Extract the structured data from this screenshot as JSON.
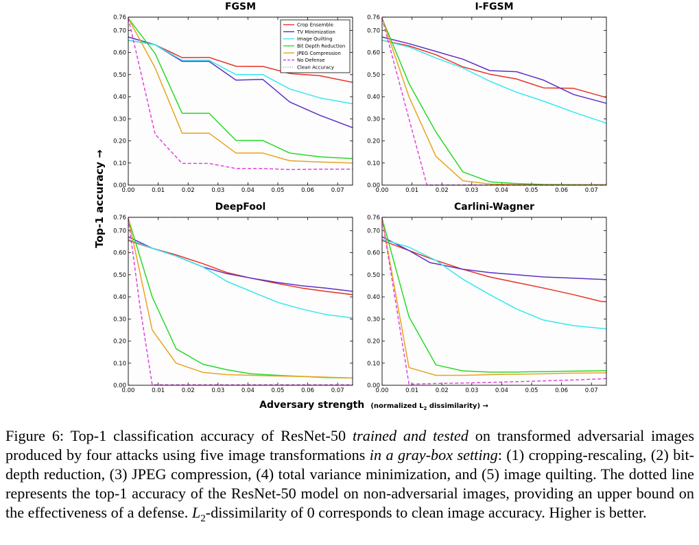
{
  "figure": {
    "ylabel": "Top-1 accuracy →",
    "xlabel_main": "Adversary strength",
    "xlabel_paren_open": "(normalized L",
    "xlabel_sub": "2",
    "xlabel_paren_close": " dissimilarity) →",
    "legend": [
      {
        "label": "Crop Ensemble",
        "color": "#e8301f",
        "dash": false
      },
      {
        "label": "TV Minimization",
        "color": "#5a2fc4",
        "dash": false
      },
      {
        "label": "Image Quilting",
        "color": "#33e8ee",
        "dash": false
      },
      {
        "label": "Bit Depth Reduction",
        "color": "#28d828",
        "dash": false
      },
      {
        "label": "JPEG Compression",
        "color": "#e8a21c",
        "dash": false
      },
      {
        "label": "No Defense",
        "color": "#e23ee0",
        "dash": true
      },
      {
        "label": "Clean Accuracy",
        "color": "#9a9a9a",
        "dash": "dot"
      }
    ]
  },
  "chart_data": [
    {
      "type": "line",
      "title": "FGSM",
      "xlim": [
        0,
        0.075
      ],
      "ylim": [
        0,
        0.76
      ],
      "xticks": [
        "0.00",
        "0.01",
        "0.02",
        "0.03",
        "0.04",
        "0.05",
        "0.06",
        "0.07"
      ],
      "yticks": [
        "0.00",
        "0.10",
        "0.20",
        "0.30",
        "0.40",
        "0.50",
        "0.60",
        "0.70",
        "0.76"
      ],
      "clean_accuracy": 0.76,
      "series": [
        {
          "name": "Crop Ensemble",
          "x": [
            0,
            0.009,
            0.018,
            0.027,
            0.036,
            0.045,
            0.054,
            0.064,
            0.075
          ],
          "y": [
            0.655,
            0.635,
            0.577,
            0.578,
            0.538,
            0.537,
            0.505,
            0.495,
            0.465
          ]
        },
        {
          "name": "TV Minimization",
          "x": [
            0,
            0.009,
            0.018,
            0.027,
            0.036,
            0.045,
            0.054,
            0.064,
            0.075
          ],
          "y": [
            0.67,
            0.635,
            0.56,
            0.56,
            0.475,
            0.478,
            0.376,
            0.316,
            0.26
          ]
        },
        {
          "name": "Image Quilting",
          "x": [
            0,
            0.009,
            0.018,
            0.027,
            0.036,
            0.045,
            0.054,
            0.064,
            0.075
          ],
          "y": [
            0.655,
            0.635,
            0.565,
            0.565,
            0.5,
            0.5,
            0.435,
            0.395,
            0.368
          ]
        },
        {
          "name": "Bit Depth Reduction",
          "x": [
            0,
            0.009,
            0.018,
            0.027,
            0.036,
            0.045,
            0.054,
            0.064,
            0.075
          ],
          "y": [
            0.755,
            0.595,
            0.325,
            0.325,
            0.202,
            0.202,
            0.145,
            0.128,
            0.12
          ]
        },
        {
          "name": "JPEG Compression",
          "x": [
            0,
            0.009,
            0.018,
            0.027,
            0.036,
            0.045,
            0.054,
            0.064,
            0.075
          ],
          "y": [
            0.755,
            0.53,
            0.235,
            0.235,
            0.145,
            0.145,
            0.11,
            0.105,
            0.1
          ]
        },
        {
          "name": "No Defense",
          "x": [
            0,
            0.009,
            0.018,
            0.027,
            0.036,
            0.045,
            0.054,
            0.064,
            0.075
          ],
          "y": [
            0.755,
            0.23,
            0.098,
            0.098,
            0.075,
            0.075,
            0.07,
            0.072,
            0.072
          ]
        }
      ]
    },
    {
      "type": "line",
      "title": "I-FGSM",
      "xlim": [
        0,
        0.075
      ],
      "ylim": [
        0,
        0.76
      ],
      "xticks": [
        "0.00",
        "0.01",
        "0.02",
        "0.03",
        "0.04",
        "0.05",
        "0.06",
        "0.07"
      ],
      "yticks": [
        "0.00",
        "0.10",
        "0.20",
        "0.30",
        "0.40",
        "0.50",
        "0.60",
        "0.70",
        "0.76"
      ],
      "clean_accuracy": 0.76,
      "series": [
        {
          "name": "Crop Ensemble",
          "x": [
            0,
            0.009,
            0.018,
            0.027,
            0.036,
            0.045,
            0.054,
            0.064,
            0.075
          ],
          "y": [
            0.655,
            0.63,
            0.59,
            0.535,
            0.502,
            0.48,
            0.44,
            0.438,
            0.396
          ]
        },
        {
          "name": "TV Minimization",
          "x": [
            0,
            0.009,
            0.018,
            0.027,
            0.036,
            0.045,
            0.054,
            0.064,
            0.075
          ],
          "y": [
            0.67,
            0.64,
            0.605,
            0.57,
            0.518,
            0.513,
            0.475,
            0.41,
            0.37
          ]
        },
        {
          "name": "Image Quilting",
          "x": [
            0,
            0.009,
            0.018,
            0.027,
            0.036,
            0.045,
            0.054,
            0.064,
            0.075
          ],
          "y": [
            0.655,
            0.625,
            0.575,
            0.53,
            0.47,
            0.42,
            0.38,
            0.33,
            0.28
          ]
        },
        {
          "name": "Bit Depth Reduction",
          "x": [
            0,
            0.009,
            0.018,
            0.027,
            0.036,
            0.045,
            0.054,
            0.064,
            0.075
          ],
          "y": [
            0.755,
            0.46,
            0.24,
            0.06,
            0.015,
            0.007,
            0.003,
            0.002,
            0.002
          ]
        },
        {
          "name": "JPEG Compression",
          "x": [
            0,
            0.009,
            0.018,
            0.027,
            0.036,
            0.045,
            0.054,
            0.064,
            0.075
          ],
          "y": [
            0.755,
            0.4,
            0.13,
            0.02,
            0.005,
            0.002,
            0.001,
            0.001,
            0.001
          ]
        },
        {
          "name": "No Defense",
          "x": [
            0,
            0.009,
            0.015,
            0.018,
            0.027,
            0.036,
            0.045,
            0.054,
            0.064,
            0.075
          ],
          "y": [
            0.755,
            0.3,
            0.0,
            0.0,
            0.0,
            0.0,
            0.0,
            0.0,
            0.0,
            0.0
          ]
        }
      ]
    },
    {
      "type": "line",
      "title": "DeepFool",
      "xlim": [
        0,
        0.075
      ],
      "ylim": [
        0,
        0.76
      ],
      "xticks": [
        "0.00",
        "0.01",
        "0.02",
        "0.03",
        "0.04",
        "0.05",
        "0.06",
        "0.07"
      ],
      "yticks": [
        "0.00",
        "0.10",
        "0.20",
        "0.30",
        "0.40",
        "0.50",
        "0.60",
        "0.70",
        "0.76"
      ],
      "clean_accuracy": 0.76,
      "series": [
        {
          "name": "Crop Ensemble",
          "x": [
            0,
            0.008,
            0.016,
            0.025,
            0.033,
            0.041,
            0.05,
            0.058,
            0.066,
            0.075
          ],
          "y": [
            0.655,
            0.62,
            0.59,
            0.55,
            0.51,
            0.485,
            0.46,
            0.44,
            0.425,
            0.41
          ]
        },
        {
          "name": "TV Minimization",
          "x": [
            0,
            0.008,
            0.016,
            0.025,
            0.033,
            0.041,
            0.05,
            0.058,
            0.066,
            0.075
          ],
          "y": [
            0.672,
            0.62,
            0.585,
            0.535,
            0.505,
            0.485,
            0.465,
            0.45,
            0.44,
            0.425
          ]
        },
        {
          "name": "Image Quilting",
          "x": [
            0,
            0.008,
            0.016,
            0.025,
            0.033,
            0.041,
            0.05,
            0.058,
            0.066,
            0.075
          ],
          "y": [
            0.66,
            0.62,
            0.585,
            0.535,
            0.47,
            0.425,
            0.375,
            0.345,
            0.32,
            0.305
          ]
        },
        {
          "name": "Bit Depth Reduction",
          "x": [
            0,
            0.008,
            0.016,
            0.025,
            0.033,
            0.041,
            0.05,
            0.058,
            0.066,
            0.075
          ],
          "y": [
            0.755,
            0.4,
            0.165,
            0.095,
            0.07,
            0.052,
            0.045,
            0.04,
            0.035,
            0.033
          ]
        },
        {
          "name": "JPEG Compression",
          "x": [
            0,
            0.008,
            0.016,
            0.025,
            0.033,
            0.041,
            0.05,
            0.058,
            0.066,
            0.075
          ],
          "y": [
            0.755,
            0.25,
            0.1,
            0.058,
            0.048,
            0.045,
            0.042,
            0.04,
            0.037,
            0.033
          ]
        },
        {
          "name": "No Defense",
          "x": [
            0,
            0.004,
            0.008,
            0.016,
            0.025,
            0.033,
            0.041,
            0.05,
            0.058,
            0.066,
            0.075
          ],
          "y": [
            0.755,
            0.35,
            0.002,
            0.002,
            0.002,
            0.002,
            0.002,
            0.002,
            0.002,
            0.002,
            0.002
          ]
        }
      ]
    },
    {
      "type": "line",
      "title": "Carlini-Wagner",
      "xlim": [
        0,
        0.075
      ],
      "ylim": [
        0,
        0.76
      ],
      "xticks": [
        "0.00",
        "0.01",
        "0.02",
        "0.03",
        "0.04",
        "0.05",
        "0.06",
        "0.07"
      ],
      "yticks": [
        "0.00",
        "0.10",
        "0.20",
        "0.30",
        "0.40",
        "0.50",
        "0.60",
        "0.70",
        "0.76"
      ],
      "clean_accuracy": 0.76,
      "series": [
        {
          "name": "Crop Ensemble",
          "x": [
            0,
            0.009,
            0.018,
            0.027,
            0.036,
            0.045,
            0.054,
            0.064,
            0.073,
            0.075
          ],
          "y": [
            0.655,
            0.61,
            0.565,
            0.525,
            0.49,
            0.465,
            0.44,
            0.41,
            0.38,
            0.378
          ]
        },
        {
          "name": "TV Minimization",
          "x": [
            0,
            0.009,
            0.016,
            0.018,
            0.027,
            0.036,
            0.045,
            0.054,
            0.064,
            0.075
          ],
          "y": [
            0.672,
            0.61,
            0.555,
            0.55,
            0.525,
            0.51,
            0.5,
            0.49,
            0.485,
            0.478
          ]
        },
        {
          "name": "Image Quilting",
          "x": [
            0,
            0.009,
            0.018,
            0.027,
            0.036,
            0.045,
            0.054,
            0.064,
            0.075
          ],
          "y": [
            0.66,
            0.625,
            0.565,
            0.48,
            0.41,
            0.345,
            0.295,
            0.27,
            0.255
          ]
        },
        {
          "name": "Bit Depth Reduction",
          "x": [
            0,
            0.009,
            0.018,
            0.027,
            0.036,
            0.045,
            0.054,
            0.064,
            0.075
          ],
          "y": [
            0.755,
            0.31,
            0.092,
            0.065,
            0.06,
            0.06,
            0.062,
            0.064,
            0.066
          ]
        },
        {
          "name": "JPEG Compression",
          "x": [
            0,
            0.009,
            0.018,
            0.027,
            0.036,
            0.045,
            0.054,
            0.064,
            0.075
          ],
          "y": [
            0.755,
            0.08,
            0.045,
            0.045,
            0.048,
            0.05,
            0.052,
            0.055,
            0.056
          ]
        },
        {
          "name": "No Defense",
          "x": [
            0,
            0.009,
            0.018,
            0.027,
            0.036,
            0.045,
            0.054,
            0.064,
            0.075
          ],
          "y": [
            0.755,
            0.005,
            0.008,
            0.01,
            0.013,
            0.016,
            0.02,
            0.024,
            0.03
          ]
        }
      ]
    }
  ],
  "caption": {
    "p1": "Figure 6: Top-1 classification accuracy of ResNet-50 ",
    "p2": "trained and tested",
    "p3": " on transformed adversarial images produced by four attacks using five image transformations ",
    "p4": "in a gray-box setting",
    "p5": ": (1) cropping-rescaling, (2) bit-depth reduction, (3) JPEG compression, (4) total variance minimization, and (5) image quilting. The dotted line represents the top-1 accuracy of the ResNet-50 model on non-adversarial images, providing an upper bound on the effectiveness of a defense. ",
    "p6": "L",
    "p7": "2",
    "p8": "-dissimilarity of 0 corresponds to clean image accuracy. Higher is better."
  }
}
